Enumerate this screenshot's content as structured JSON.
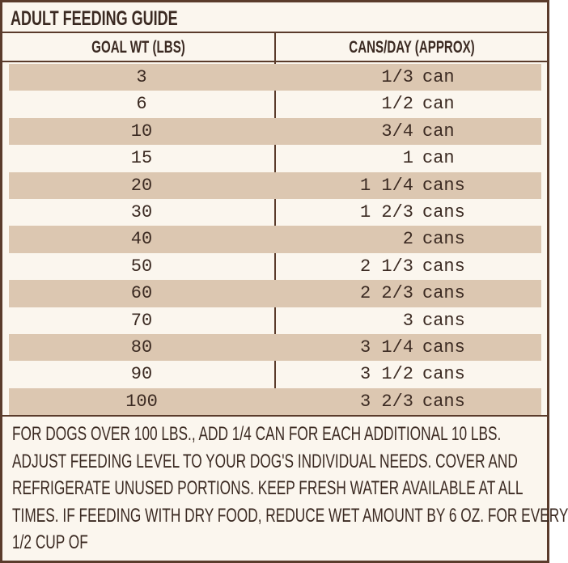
{
  "title": "ADULT FEEDING GUIDE",
  "table": {
    "headers": [
      "GOAL WT (LBS)",
      "CANS/DAY (APPROX)"
    ],
    "rows": [
      [
        "3",
        "1/3",
        "can"
      ],
      [
        "6",
        "1/2",
        "can"
      ],
      [
        "10",
        "3/4",
        "can"
      ],
      [
        "15",
        "1",
        "can"
      ],
      [
        "20",
        "1 1/4",
        "cans"
      ],
      [
        "30",
        "1 2/3",
        "cans"
      ],
      [
        "40",
        "2",
        "cans"
      ],
      [
        "50",
        "2 1/3",
        "cans"
      ],
      [
        "60",
        "2 2/3",
        "cans"
      ],
      [
        "70",
        "3",
        "cans"
      ],
      [
        "80",
        "3 1/4",
        "cans"
      ],
      [
        "90",
        "3 1/2",
        "cans"
      ],
      [
        "100",
        "3 2/3",
        "cans"
      ]
    ]
  },
  "footer": {
    "lines": [
      "FOR DOGS OVER 100 LBS., ADD 1/4 CAN FOR EACH ADDITIONAL 10 LBS.",
      "ADJUST FEEDING LEVEL TO YOUR DOG'S INDIVIDUAL NEEDS. COVER AND",
      "REFRIGERATE UNUSED PORTIONS. KEEP FRESH WATER AVAILABLE AT ALL",
      "TIMES. IF FEEDING WITH DRY FOOD, REDUCE WET AMOUNT BY 6 OZ. FOR EVERY",
      "1/2 CUP OF"
    ]
  }
}
